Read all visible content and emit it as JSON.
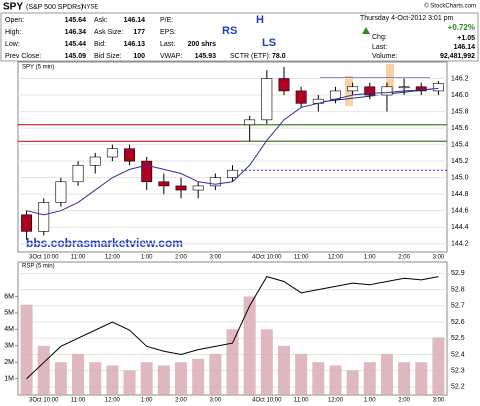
{
  "header": {
    "symbol": "SPY",
    "name": "(S&P 500 SPDRs)",
    "exchange": "NYSE",
    "source": "© StockCharts.com",
    "datetime": "Thursday 4-Oct-2012 3:01 pm"
  },
  "quote": {
    "open_label": "Open:",
    "open": 145.64,
    "high_label": "High:",
    "high": 146.34,
    "low_label": "Low:",
    "low": 145.44,
    "prev_label": "Prev Close:",
    "prev": 145.09,
    "ask_label": "Ask:",
    "ask": 146.14,
    "asksize_label": "Ask Size:",
    "asksize": 177,
    "bid_label": "Bid:",
    "bid": 146.13,
    "bidsize_label": "Bid Size:",
    "bidsize": 100,
    "pe_label": "P/E:",
    "eps_label": "EPS:",
    "lastsize_label": "Last:",
    "lastsize": "200 shrs",
    "vwap_label": "VWAP:",
    "vwap": 145.93,
    "sctr_label": "SCTR (ETF):",
    "sctr": "78.0",
    "chg_label": "Chg:",
    "chg_pct": "+0.72%",
    "chg": "+1.05",
    "last_label": "Last:",
    "last": 146.14,
    "volume_label": "Volume:",
    "volume": "92,481,992"
  },
  "chart_data": [
    {
      "type": "candlestick",
      "title": "SPY (5 min)",
      "watermark": "bbs.cobrasmarketview.com",
      "annotations": [
        "RS",
        "H",
        "LS"
      ],
      "categories": [
        null,
        "3Oct 10:00",
        null,
        "11:00",
        null,
        "12:00",
        null,
        "1:00",
        null,
        "2:00",
        null,
        "3:00",
        null,
        null,
        "4Oct 10:00",
        null,
        "11:00",
        null,
        "12:00",
        null,
        "1:00",
        null,
        "2:00",
        null,
        "3:00"
      ],
      "open": [
        144.55,
        144.35,
        144.7,
        144.95,
        145.15,
        145.25,
        145.35,
        145.2,
        144.95,
        144.9,
        144.85,
        144.9,
        145.0,
        145.64,
        145.7,
        146.2,
        146.05,
        145.9,
        145.95,
        146.05,
        146.1,
        146.0,
        146.1,
        146.1,
        146.05
      ],
      "high": [
        144.6,
        144.75,
        145.0,
        145.2,
        145.3,
        145.4,
        145.4,
        145.25,
        145.05,
        145.0,
        144.95,
        145.05,
        145.15,
        145.75,
        146.3,
        146.34,
        146.1,
        146.0,
        146.1,
        146.15,
        146.15,
        146.15,
        146.2,
        146.15,
        146.17
      ],
      "low": [
        144.25,
        144.3,
        144.65,
        144.9,
        145.05,
        145.2,
        145.15,
        144.85,
        144.8,
        144.75,
        144.75,
        144.85,
        144.95,
        145.44,
        145.65,
        146.0,
        145.85,
        145.8,
        145.9,
        146.0,
        145.95,
        145.8,
        146.0,
        146.0,
        146.0
      ],
      "close": [
        144.35,
        144.7,
        144.95,
        145.15,
        145.25,
        145.35,
        145.2,
        144.95,
        144.9,
        144.85,
        144.9,
        145.0,
        145.09,
        145.7,
        146.2,
        146.05,
        145.9,
        145.95,
        146.05,
        146.1,
        146.0,
        146.1,
        146.1,
        146.05,
        146.14
      ],
      "moving_average": {
        "color": "#3030a0",
        "values": [
          144.6,
          144.55,
          144.6,
          144.7,
          144.85,
          145.0,
          145.1,
          145.15,
          145.1,
          145.05,
          144.95,
          144.92,
          144.95,
          145.15,
          145.45,
          145.7,
          145.85,
          145.9,
          145.95,
          146.0,
          146.02,
          146.03,
          146.05,
          146.06,
          146.08
        ]
      },
      "up_color": "#ffffff",
      "down_color": "#b00020",
      "ylim": [
        144.1,
        146.4
      ],
      "yticks": [
        144.2,
        144.4,
        144.6,
        144.8,
        {
          "value": 145,
          "label": "145.0"
        },
        145.2,
        145.4,
        145.6,
        145.8,
        {
          "value": 146,
          "label": "146.0"
        },
        146.2
      ],
      "grid": true
    },
    {
      "type": "line",
      "title": "RSP (5 min)",
      "series": [
        {
          "color": "#000000",
          "axis": "y2",
          "values": [
            52.25,
            52.35,
            52.45,
            52.5,
            52.55,
            52.6,
            52.55,
            52.45,
            52.42,
            52.4,
            52.43,
            52.45,
            52.47,
            52.7,
            52.88,
            52.85,
            52.78,
            52.8,
            52.82,
            52.84,
            52.83,
            52.85,
            52.87,
            52.86,
            52.88
          ]
        }
      ],
      "volume": {
        "color": "#d8a8b0",
        "values": [
          5500000,
          3000000,
          2000000,
          2500000,
          2000000,
          1800000,
          1500000,
          2000000,
          1800000,
          2000000,
          2200000,
          2500000,
          4000000,
          6000000,
          4000000,
          3000000,
          2500000,
          2000000,
          1800000,
          1500000,
          2000000,
          2500000,
          2000000,
          2000000,
          3500000
        ]
      },
      "ylim": [
        0,
        8100000
      ],
      "yticks": [
        {
          "value": 1000000,
          "label": "1M"
        },
        {
          "value": 2000000,
          "label": "2M"
        },
        {
          "value": 3000000,
          "label": "3M"
        },
        {
          "value": 4000000,
          "label": "4M"
        },
        {
          "value": 5000000,
          "label": "5M"
        },
        {
          "value": 6000000,
          "label": "6M"
        }
      ],
      "y2lim": [
        52.15,
        52.97
      ],
      "y2ticks": [
        52.2,
        52.3,
        52.4,
        52.5,
        52.6,
        52.7,
        52.8,
        52.9
      ]
    }
  ]
}
